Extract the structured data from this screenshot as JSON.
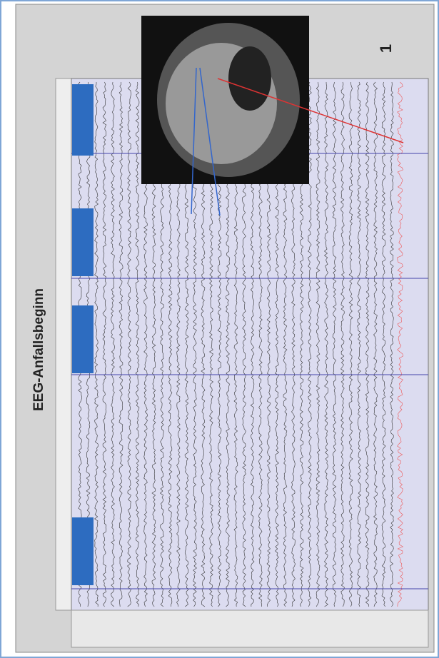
{
  "figure": {
    "title": "EEG-Anfallsbeginn",
    "number": "1"
  }
}
